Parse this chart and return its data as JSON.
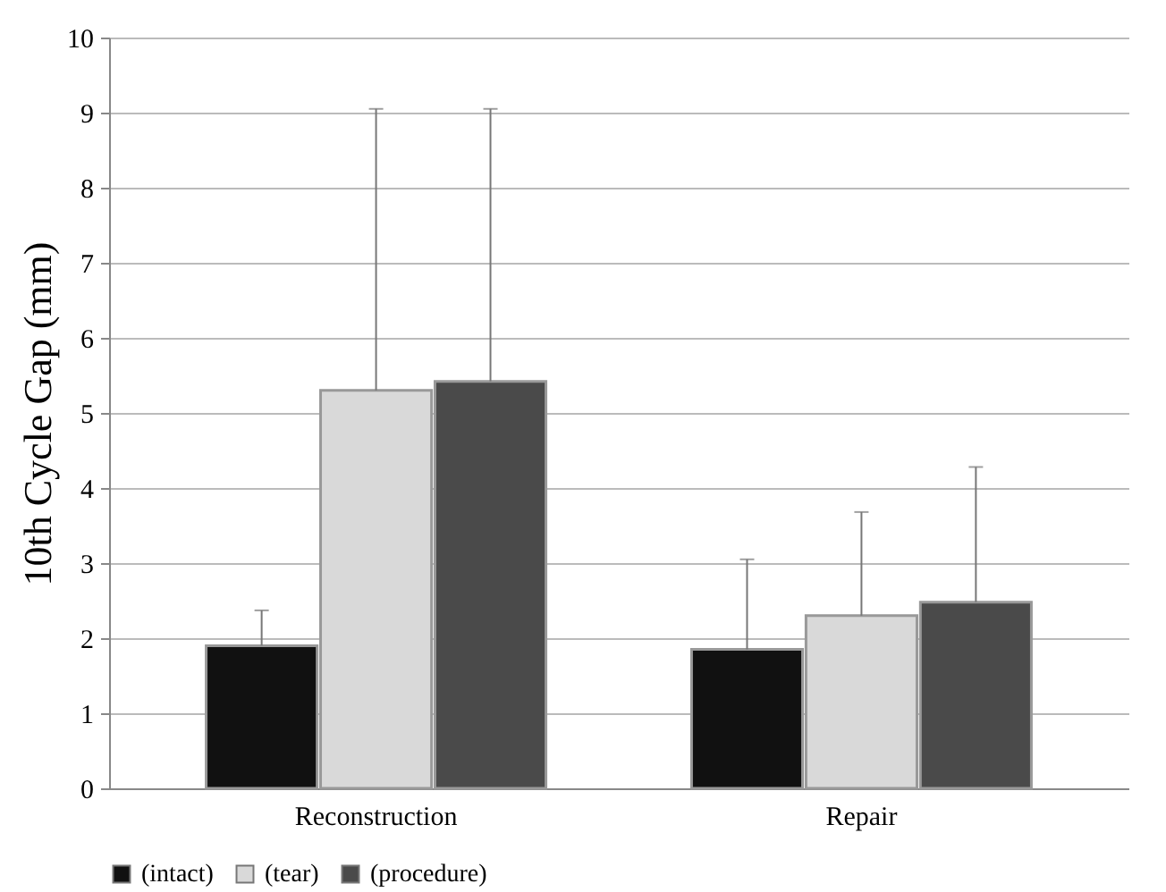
{
  "chart_data": {
    "type": "bar",
    "ylabel": "10th Cycle Gap (mm)",
    "categories": [
      "Reconstruction",
      "Repair"
    ],
    "series": [
      {
        "name": "(intact)",
        "color": "#111111",
        "values": [
          1.9,
          1.85
        ],
        "errors": [
          [
            1.9,
            2.37
          ],
          [
            1.85,
            3.05
          ]
        ]
      },
      {
        "name": "(tear)",
        "color": "#d9d9d9",
        "values": [
          5.3,
          2.3
        ],
        "errors": [
          [
            5.3,
            9.05
          ],
          [
            2.3,
            3.68
          ]
        ]
      },
      {
        "name": "(procedure)",
        "color": "#4a4a4a",
        "values": [
          5.42,
          2.48
        ],
        "errors": [
          [
            5.42,
            9.05
          ],
          [
            2.48,
            4.28
          ]
        ]
      }
    ],
    "ylim": [
      0,
      10
    ],
    "yticks": [
      0,
      1,
      2,
      3,
      4,
      5,
      6,
      7,
      8,
      9,
      10
    ],
    "grid": "y",
    "legend": "bottom"
  }
}
